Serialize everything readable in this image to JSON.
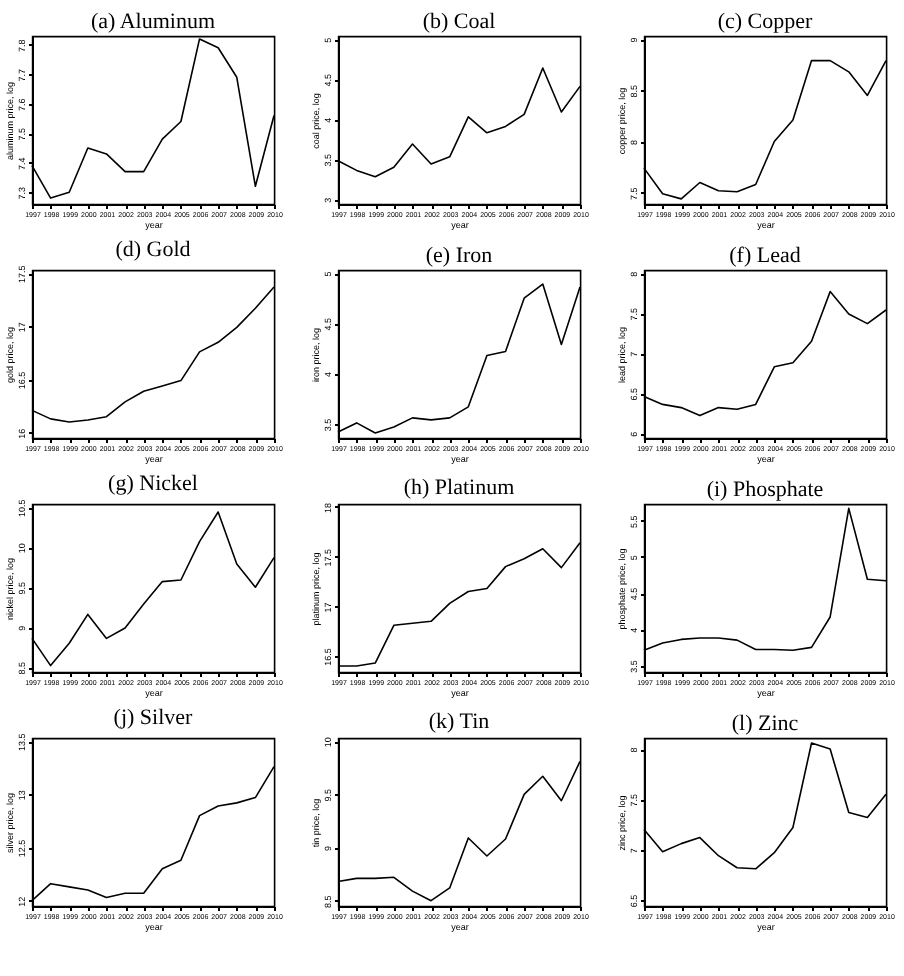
{
  "chart_data": [
    {
      "type": "line",
      "title": "(a) Aluminum",
      "xlabel": "year",
      "ylabel": "aluminum price, log",
      "x": [
        1997,
        1998,
        1999,
        2000,
        2001,
        2002,
        2003,
        2004,
        2005,
        2006,
        2007,
        2008,
        2009,
        2010
      ],
      "xlim": [
        1997,
        2010
      ],
      "xticks": [
        1997,
        1998,
        1999,
        2000,
        2001,
        2002,
        2003,
        2004,
        2005,
        2006,
        2007,
        2008,
        2009,
        2010
      ],
      "ylim": [
        7.26,
        7.83
      ],
      "yticks": [
        7.3,
        7.4,
        7.5,
        7.6,
        7.7,
        7.8
      ],
      "series": [
        {
          "color": "#000000",
          "values": [
            7.39,
            7.28,
            7.3,
            7.45,
            7.43,
            7.37,
            7.37,
            7.48,
            7.54,
            7.82,
            7.79,
            7.69,
            7.32,
            7.56
          ]
        }
      ]
    },
    {
      "type": "line",
      "title": "(b) Coal",
      "xlabel": "year",
      "ylabel": "coal price, log",
      "x": [
        1997,
        1998,
        1999,
        2000,
        2001,
        2002,
        2003,
        2004,
        2005,
        2006,
        2007,
        2008,
        2009,
        2010
      ],
      "xlim": [
        1997,
        2010
      ],
      "xticks": [
        1997,
        1998,
        1999,
        2000,
        2001,
        2002,
        2003,
        2004,
        2005,
        2006,
        2007,
        2008,
        2009,
        2010
      ],
      "ylim": [
        2.94,
        5.04
      ],
      "yticks": [
        3,
        3.5,
        4,
        4.5,
        5
      ],
      "series": [
        {
          "color": "#000000",
          "values": [
            3.48,
            3.36,
            3.28,
            3.4,
            3.69,
            3.44,
            3.53,
            4.03,
            3.83,
            3.91,
            4.06,
            4.64,
            4.09,
            4.41
          ]
        }
      ]
    },
    {
      "type": "line",
      "title": "(c) Copper",
      "xlabel": "year",
      "ylabel": "copper price, log",
      "x": [
        1997,
        1998,
        1999,
        2000,
        2001,
        2002,
        2003,
        2004,
        2005,
        2006,
        2007,
        2008,
        2009,
        2010
      ],
      "xlim": [
        1997,
        2010
      ],
      "xticks": [
        1997,
        1998,
        1999,
        2000,
        2001,
        2002,
        2003,
        2004,
        2005,
        2006,
        2007,
        2008,
        2009,
        2010
      ],
      "ylim": [
        7.39,
        9.03
      ],
      "yticks": [
        7.5,
        8,
        8.5,
        9
      ],
      "series": [
        {
          "color": "#000000",
          "values": [
            7.74,
            7.49,
            7.44,
            7.6,
            7.52,
            7.51,
            7.58,
            8.0,
            8.21,
            8.79,
            8.79,
            8.68,
            8.45,
            8.79
          ]
        }
      ]
    },
    {
      "type": "line",
      "title": "(d) Gold",
      "xlabel": "year",
      "ylabel": "gold price, log",
      "x": [
        1997,
        1998,
        1999,
        2000,
        2001,
        2002,
        2003,
        2004,
        2005,
        2006,
        2007,
        2008,
        2009,
        2010
      ],
      "xlim": [
        1997,
        2010
      ],
      "xticks": [
        1997,
        1998,
        1999,
        2000,
        2001,
        2002,
        2003,
        2004,
        2005,
        2006,
        2007,
        2008,
        2009,
        2010
      ],
      "ylim": [
        15.95,
        17.53
      ],
      "yticks": [
        16,
        16.5,
        17,
        17.5
      ],
      "series": [
        {
          "color": "#000000",
          "values": [
            16.21,
            16.13,
            16.1,
            16.12,
            16.15,
            16.29,
            16.39,
            16.44,
            16.49,
            16.76,
            16.85,
            16.99,
            17.17,
            17.37
          ]
        }
      ]
    },
    {
      "type": "line",
      "title": "(e) Iron",
      "xlabel": "year",
      "ylabel": "iron price, log",
      "x": [
        1997,
        1998,
        1999,
        2000,
        2001,
        2002,
        2003,
        2004,
        2005,
        2006,
        2007,
        2008,
        2009,
        2010
      ],
      "xlim": [
        1997,
        2010
      ],
      "xticks": [
        1997,
        1998,
        1999,
        2000,
        2001,
        2002,
        2003,
        2004,
        2005,
        2006,
        2007,
        2008,
        2009,
        2010
      ],
      "ylim": [
        3.36,
        5.03
      ],
      "yticks": [
        3.5,
        4,
        4.5,
        5
      ],
      "series": [
        {
          "color": "#000000",
          "values": [
            3.42,
            3.51,
            3.41,
            3.47,
            3.56,
            3.54,
            3.56,
            3.67,
            4.18,
            4.22,
            4.75,
            4.89,
            4.29,
            4.86
          ]
        }
      ]
    },
    {
      "type": "line",
      "title": "(f) Lead",
      "xlabel": "year",
      "ylabel": "lead price, log",
      "x": [
        1997,
        1998,
        1999,
        2000,
        2001,
        2002,
        2003,
        2004,
        2005,
        2006,
        2007,
        2008,
        2009,
        2010
      ],
      "xlim": [
        1997,
        2010
      ],
      "xticks": [
        1997,
        1998,
        1999,
        2000,
        2001,
        2002,
        2003,
        2004,
        2005,
        2006,
        2007,
        2008,
        2009,
        2010
      ],
      "ylim": [
        5.94,
        8.04
      ],
      "yticks": [
        6,
        6.5,
        7,
        7.5,
        8
      ],
      "series": [
        {
          "color": "#000000",
          "values": [
            6.46,
            6.36,
            6.32,
            6.22,
            6.32,
            6.3,
            6.36,
            6.83,
            6.88,
            7.15,
            7.77,
            7.49,
            7.37,
            7.54
          ]
        }
      ]
    },
    {
      "type": "line",
      "title": "(g) Nickel",
      "xlabel": "year",
      "ylabel": "nickel price, log",
      "x": [
        1997,
        1998,
        1999,
        2000,
        2001,
        2002,
        2003,
        2004,
        2005,
        2006,
        2007,
        2008,
        2009,
        2010
      ],
      "xlim": [
        1997,
        2010
      ],
      "xticks": [
        1997,
        1998,
        1999,
        2000,
        2001,
        2002,
        2003,
        2004,
        2005,
        2006,
        2007,
        2008,
        2009,
        2010
      ],
      "ylim": [
        8.44,
        10.54
      ],
      "yticks": [
        8.5,
        9,
        9.5,
        10,
        10.5
      ],
      "series": [
        {
          "color": "#000000",
          "values": [
            8.86,
            8.52,
            8.8,
            9.16,
            8.86,
            8.99,
            9.29,
            9.57,
            9.59,
            10.07,
            10.44,
            9.79,
            9.5,
            9.87
          ]
        }
      ]
    },
    {
      "type": "line",
      "title": "(h) Platinum",
      "xlabel": "year",
      "ylabel": "platinum price, log",
      "x": [
        1997,
        1998,
        1999,
        2000,
        2001,
        2002,
        2003,
        2004,
        2005,
        2006,
        2007,
        2008,
        2009,
        2010
      ],
      "xlim": [
        1997,
        2010
      ],
      "xticks": [
        1997,
        1998,
        1999,
        2000,
        2001,
        2002,
        2003,
        2004,
        2005,
        2006,
        2007,
        2008,
        2009,
        2010
      ],
      "ylim": [
        16.34,
        18.03
      ],
      "yticks": [
        16.5,
        17,
        17.5,
        18
      ],
      "series": [
        {
          "color": "#000000",
          "values": [
            16.4,
            16.4,
            16.43,
            16.81,
            16.83,
            16.85,
            17.03,
            17.15,
            17.18,
            17.4,
            17.48,
            17.58,
            17.39,
            17.64
          ]
        }
      ]
    },
    {
      "type": "line",
      "title": "(i) Phosphate",
      "xlabel": "year",
      "ylabel": "phosphate price, log",
      "x": [
        1997,
        1998,
        1999,
        2000,
        2001,
        2002,
        2003,
        2004,
        2005,
        2006,
        2007,
        2008,
        2009,
        2010
      ],
      "xlim": [
        1997,
        2010
      ],
      "xticks": [
        1997,
        1998,
        1999,
        2000,
        2001,
        2002,
        2003,
        2004,
        2005,
        2006,
        2007,
        2008,
        2009,
        2010
      ],
      "ylim": [
        3.41,
        5.73
      ],
      "yticks": [
        3.5,
        4,
        4.5,
        5,
        5.5
      ],
      "series": [
        {
          "color": "#000000",
          "values": [
            3.71,
            3.81,
            3.86,
            3.88,
            3.88,
            3.85,
            3.72,
            3.72,
            3.71,
            3.75,
            4.17,
            5.67,
            4.69,
            4.67
          ]
        }
      ]
    },
    {
      "type": "line",
      "title": "(j) Silver",
      "xlabel": "year",
      "ylabel": "silver price, log",
      "x": [
        1997,
        1998,
        1999,
        2000,
        2001,
        2002,
        2003,
        2004,
        2005,
        2006,
        2007,
        2008,
        2009,
        2010
      ],
      "xlim": [
        1997,
        2010
      ],
      "xticks": [
        1997,
        1998,
        1999,
        2000,
        2001,
        2002,
        2003,
        2004,
        2005,
        2006,
        2007,
        2008,
        2009,
        2010
      ],
      "ylim": [
        11.95,
        13.53
      ],
      "yticks": [
        12,
        12.5,
        13,
        13.5
      ],
      "series": [
        {
          "color": "#000000",
          "values": [
            12.0,
            12.16,
            12.13,
            12.1,
            12.03,
            12.07,
            12.07,
            12.3,
            12.38,
            12.8,
            12.89,
            12.92,
            12.97,
            13.26
          ]
        }
      ]
    },
    {
      "type": "line",
      "title": "(k) Tin",
      "xlabel": "year",
      "ylabel": "tin price, log",
      "x": [
        1997,
        1998,
        1999,
        2000,
        2001,
        2002,
        2003,
        2004,
        2005,
        2006,
        2007,
        2008,
        2009,
        2010
      ],
      "xlim": [
        1997,
        2010
      ],
      "xticks": [
        1997,
        1998,
        1999,
        2000,
        2001,
        2002,
        2003,
        2004,
        2005,
        2006,
        2007,
        2008,
        2009,
        2010
      ],
      "ylim": [
        8.45,
        10.03
      ],
      "yticks": [
        8.5,
        9,
        9.5,
        10
      ],
      "series": [
        {
          "color": "#000000",
          "values": [
            8.68,
            8.71,
            8.71,
            8.72,
            8.59,
            8.5,
            8.62,
            9.09,
            8.92,
            9.08,
            9.5,
            9.67,
            9.44,
            9.81
          ]
        }
      ]
    },
    {
      "type": "line",
      "title": "(l) Zinc",
      "xlabel": "year",
      "ylabel": "zinc price, log",
      "x": [
        1997,
        1998,
        1999,
        2000,
        2001,
        2002,
        2003,
        2004,
        2005,
        2006,
        2007,
        2008,
        2009,
        2010
      ],
      "xlim": [
        1997,
        2010
      ],
      "xticks": [
        1997,
        1998,
        1999,
        2000,
        2001,
        2002,
        2003,
        2004,
        2005,
        2006,
        2007,
        2008,
        2009,
        2010
      ],
      "ylim": [
        6.44,
        8.11
      ],
      "yticks": [
        6.5,
        7,
        7.5,
        8
      ],
      "series": [
        {
          "color": "#000000",
          "values": [
            7.2,
            6.98,
            7.06,
            7.12,
            6.94,
            6.82,
            6.81,
            6.97,
            7.22,
            8.06,
            8.0,
            7.37,
            7.32,
            7.55
          ]
        }
      ]
    }
  ]
}
